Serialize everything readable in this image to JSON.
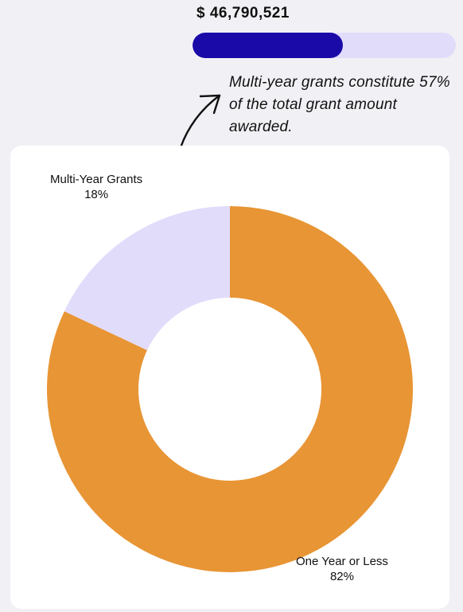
{
  "header": {
    "amount": "$ 46,790,521",
    "progress_fraction": 0.57,
    "note": "Multi-year grants constitute 57% of the total grant amount awarded."
  },
  "colors": {
    "progress_fill": "#1a0aa8",
    "progress_track": "#e2dcfb",
    "slice_one_year": "#e89535",
    "slice_multi_year": "#e2dcfb"
  },
  "chart_data": {
    "type": "pie",
    "donut": true,
    "title": "",
    "slices": [
      {
        "label": "One Year or Less",
        "value": 82,
        "value_label": "82%"
      },
      {
        "label": "Multi-Year Grants",
        "value": 18,
        "value_label": "18%"
      }
    ]
  }
}
